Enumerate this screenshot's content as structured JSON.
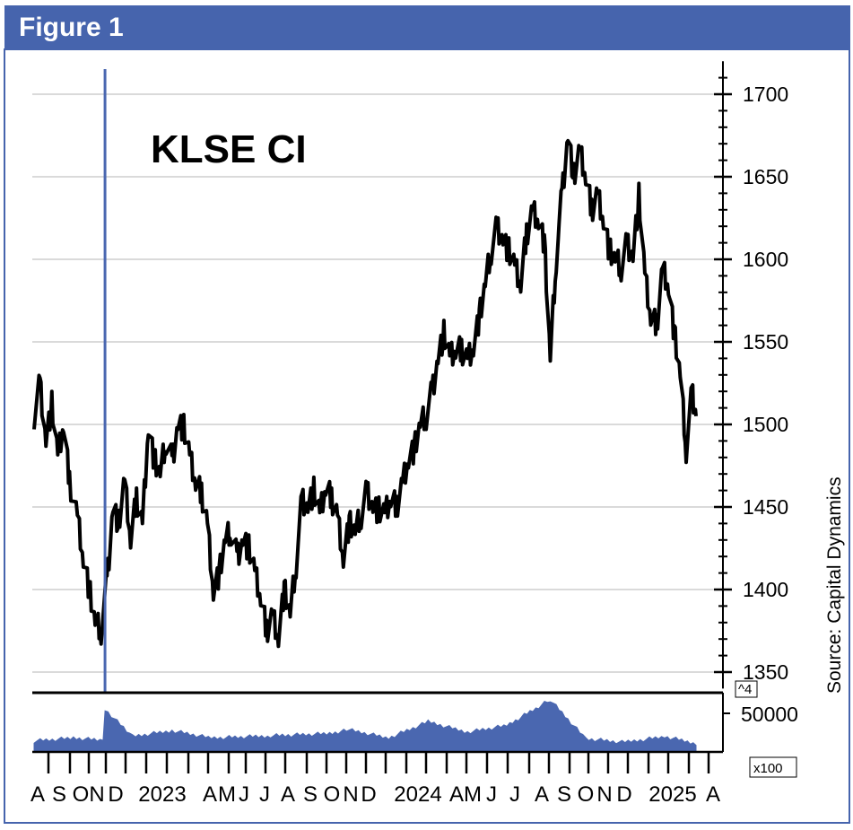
{
  "header": {
    "title": "Figure 1"
  },
  "colors": {
    "header": "#4664ad",
    "price_line": "#000000",
    "volume": "#4a67b0",
    "grid": "#b4b4b4"
  },
  "chart_data": {
    "type": "line",
    "title": "KLSE CI",
    "source": "Source: Capital Dynamics",
    "ylim": [
      1340,
      1720
    ],
    "yticks": [
      1350,
      1400,
      1450,
      1500,
      1550,
      1600,
      1650,
      1700
    ],
    "grid": true,
    "x_labels": [
      "A",
      "S",
      "O",
      "N",
      "D",
      "2023",
      "A",
      "M",
      "J",
      "J",
      "A",
      "S",
      "O",
      "N",
      "D",
      "2024",
      "A",
      "M",
      "J",
      "J",
      "A",
      "S",
      "O",
      "N",
      "D",
      "2025",
      "A"
    ],
    "series": [
      {
        "type": "line",
        "values": [
          {
            "x": 0,
            "y": 1505
          },
          {
            "x": 3,
            "y": 1525
          },
          {
            "x": 6,
            "y": 1490
          },
          {
            "x": 9,
            "y": 1512
          },
          {
            "x": 12,
            "y": 1480
          },
          {
            "x": 15,
            "y": 1500
          },
          {
            "x": 18,
            "y": 1465
          },
          {
            "x": 22,
            "y": 1445
          },
          {
            "x": 25,
            "y": 1420
          },
          {
            "x": 28,
            "y": 1400
          },
          {
            "x": 31,
            "y": 1380
          },
          {
            "x": 34,
            "y": 1375
          },
          {
            "x": 37,
            "y": 1405
          },
          {
            "x": 40,
            "y": 1450
          },
          {
            "x": 43,
            "y": 1440
          },
          {
            "x": 46,
            "y": 1465
          },
          {
            "x": 49,
            "y": 1430
          },
          {
            "x": 52,
            "y": 1455
          },
          {
            "x": 55,
            "y": 1440
          },
          {
            "x": 58,
            "y": 1500
          },
          {
            "x": 61,
            "y": 1478
          },
          {
            "x": 64,
            "y": 1470
          },
          {
            "x": 67,
            "y": 1490
          },
          {
            "x": 70,
            "y": 1478
          },
          {
            "x": 73,
            "y": 1500
          },
          {
            "x": 76,
            "y": 1498
          },
          {
            "x": 79,
            "y": 1480
          },
          {
            "x": 82,
            "y": 1465
          },
          {
            "x": 85,
            "y": 1458
          },
          {
            "x": 88,
            "y": 1440
          },
          {
            "x": 91,
            "y": 1400
          },
          {
            "x": 94,
            "y": 1410
          },
          {
            "x": 97,
            "y": 1430
          },
          {
            "x": 100,
            "y": 1435
          },
          {
            "x": 103,
            "y": 1420
          },
          {
            "x": 106,
            "y": 1430
          },
          {
            "x": 109,
            "y": 1425
          },
          {
            "x": 112,
            "y": 1410
          },
          {
            "x": 115,
            "y": 1395
          },
          {
            "x": 118,
            "y": 1375
          },
          {
            "x": 121,
            "y": 1385
          },
          {
            "x": 124,
            "y": 1372
          },
          {
            "x": 127,
            "y": 1400
          },
          {
            "x": 130,
            "y": 1385
          },
          {
            "x": 133,
            "y": 1415
          },
          {
            "x": 136,
            "y": 1455
          },
          {
            "x": 139,
            "y": 1450
          },
          {
            "x": 142,
            "y": 1460
          },
          {
            "x": 145,
            "y": 1445
          },
          {
            "x": 148,
            "y": 1462
          },
          {
            "x": 151,
            "y": 1455
          },
          {
            "x": 154,
            "y": 1445
          },
          {
            "x": 157,
            "y": 1420
          },
          {
            "x": 160,
            "y": 1440
          },
          {
            "x": 163,
            "y": 1435
          },
          {
            "x": 166,
            "y": 1445
          },
          {
            "x": 169,
            "y": 1460
          },
          {
            "x": 172,
            "y": 1450
          },
          {
            "x": 175,
            "y": 1448
          },
          {
            "x": 178,
            "y": 1445
          },
          {
            "x": 181,
            "y": 1455
          },
          {
            "x": 184,
            "y": 1450
          },
          {
            "x": 187,
            "y": 1465
          },
          {
            "x": 190,
            "y": 1480
          },
          {
            "x": 193,
            "y": 1485
          },
          {
            "x": 196,
            "y": 1500
          },
          {
            "x": 199,
            "y": 1505
          },
          {
            "x": 202,
            "y": 1520
          },
          {
            "x": 205,
            "y": 1540
          },
          {
            "x": 208,
            "y": 1555
          },
          {
            "x": 211,
            "y": 1540
          },
          {
            "x": 214,
            "y": 1545
          },
          {
            "x": 217,
            "y": 1545
          },
          {
            "x": 220,
            "y": 1540
          },
          {
            "x": 223,
            "y": 1548
          },
          {
            "x": 226,
            "y": 1565
          },
          {
            "x": 229,
            "y": 1585
          },
          {
            "x": 232,
            "y": 1605
          },
          {
            "x": 235,
            "y": 1620
          },
          {
            "x": 238,
            "y": 1612
          },
          {
            "x": 241,
            "y": 1605
          },
          {
            "x": 244,
            "y": 1595
          },
          {
            "x": 247,
            "y": 1585
          },
          {
            "x": 250,
            "y": 1615
          },
          {
            "x": 253,
            "y": 1630
          },
          {
            "x": 256,
            "y": 1625
          },
          {
            "x": 259,
            "y": 1610
          },
          {
            "x": 262,
            "y": 1540
          },
          {
            "x": 265,
            "y": 1600
          },
          {
            "x": 268,
            "y": 1640
          },
          {
            "x": 271,
            "y": 1675
          },
          {
            "x": 274,
            "y": 1650
          },
          {
            "x": 277,
            "y": 1665
          },
          {
            "x": 280,
            "y": 1650
          },
          {
            "x": 283,
            "y": 1630
          },
          {
            "x": 286,
            "y": 1640
          },
          {
            "x": 289,
            "y": 1625
          },
          {
            "x": 292,
            "y": 1605
          },
          {
            "x": 295,
            "y": 1600
          },
          {
            "x": 298,
            "y": 1595
          },
          {
            "x": 301,
            "y": 1610
          },
          {
            "x": 304,
            "y": 1602
          },
          {
            "x": 307,
            "y": 1638
          },
          {
            "x": 310,
            "y": 1590
          },
          {
            "x": 313,
            "y": 1565
          },
          {
            "x": 316,
            "y": 1560
          },
          {
            "x": 319,
            "y": 1595
          },
          {
            "x": 322,
            "y": 1585
          },
          {
            "x": 325,
            "y": 1555
          },
          {
            "x": 328,
            "y": 1530
          },
          {
            "x": 331,
            "y": 1485
          },
          {
            "x": 334,
            "y": 1520
          },
          {
            "x": 336,
            "y": 1505
          }
        ]
      },
      {
        "type": "bar",
        "values": [
          {
            "x": 0,
            "y": 12000
          },
          {
            "x": 20,
            "y": 16000
          },
          {
            "x": 35,
            "y": 13000
          },
          {
            "x": 36,
            "y": 55000
          },
          {
            "x": 50,
            "y": 18000
          },
          {
            "x": 70,
            "y": 26000
          },
          {
            "x": 90,
            "y": 16000
          },
          {
            "x": 120,
            "y": 19000
          },
          {
            "x": 150,
            "y": 22000
          },
          {
            "x": 160,
            "y": 27000
          },
          {
            "x": 180,
            "y": 16000
          },
          {
            "x": 200,
            "y": 38000
          },
          {
            "x": 220,
            "y": 24000
          },
          {
            "x": 240,
            "y": 33000
          },
          {
            "x": 262,
            "y": 68000
          },
          {
            "x": 280,
            "y": 15000
          },
          {
            "x": 300,
            "y": 10000
          },
          {
            "x": 320,
            "y": 18000
          },
          {
            "x": 336,
            "y": 9000
          }
        ]
      }
    ],
    "volume_label": "50000",
    "volume_multiplier_label": "^4",
    "volume_unit_label": "x100"
  }
}
